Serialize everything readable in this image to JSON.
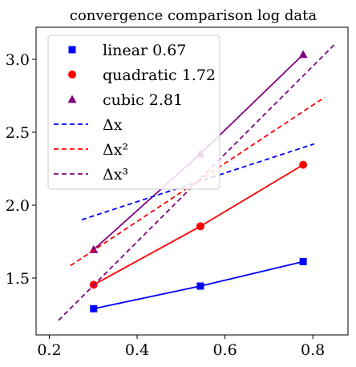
{
  "chart_data": {
    "type": "line",
    "title": "convergence comparison log data",
    "xlabel": "",
    "ylabel": "",
    "xlim": [
      0.17,
      0.88
    ],
    "ylim": [
      1.11,
      3.22
    ],
    "xticks": [
      0.2,
      0.4,
      0.6,
      0.8
    ],
    "xtick_labels": [
      "0.2",
      "0.4",
      "0.6",
      "0.8"
    ],
    "yticks": [
      1.5,
      2.0,
      2.5,
      3.0
    ],
    "ytick_labels": [
      "1.5",
      "2.0",
      "2.5",
      "3.0"
    ],
    "grid": false,
    "legend_position": "top-left",
    "series": [
      {
        "name": "linear 0.67",
        "color": "#0000ff",
        "marker": "square",
        "style": "solid",
        "x": [
          0.301,
          0.544,
          0.778
        ],
        "y": [
          1.29,
          1.445,
          1.613
        ]
      },
      {
        "name": "quadratic 1.72",
        "color": "#ff0000",
        "marker": "circle",
        "style": "solid",
        "x": [
          0.301,
          0.544,
          0.778
        ],
        "y": [
          1.454,
          1.855,
          2.277
        ]
      },
      {
        "name": "cubic 2.81",
        "color": "#800080",
        "marker": "triangle",
        "style": "solid",
        "x": [
          0.301,
          0.544,
          0.778
        ],
        "y": [
          1.695,
          2.352,
          3.033
        ]
      },
      {
        "name": "Δx",
        "color": "#0000ff",
        "marker": "none",
        "style": "dashed",
        "x": [
          0.274,
          0.803
        ],
        "y": [
          1.9,
          2.42
        ]
      },
      {
        "name": "Δx²",
        "color": "#ff0000",
        "marker": "none",
        "style": "dashed",
        "x": [
          0.248,
          0.827
        ],
        "y": [
          1.585,
          2.74
        ]
      },
      {
        "name": "Δx³",
        "color": "#800080",
        "marker": "none",
        "style": "dashed",
        "x": [
          0.221,
          0.852
        ],
        "y": [
          1.21,
          3.11
        ]
      }
    ]
  }
}
